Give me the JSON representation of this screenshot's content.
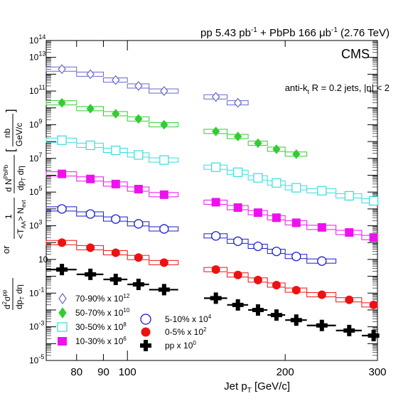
{
  "header": {
    "title_main": "pp 5.43 pb",
    "title_sup1": "-1",
    "title_mid": " + PbPb 166 μb",
    "title_sup2": "-1",
    "title_end": " (2.76 TeV)",
    "experiment": "CMS",
    "jet_selection": "anti-k",
    "jet_selection_sub": "t",
    "jet_selection_rest": " R = 0.2 jets, |η| < 2"
  },
  "axes": {
    "xlabel": "Jet p",
    "xlabel_sub": "T",
    "xlabel_unit": " [GeV/c]",
    "x_ticks": [
      "80",
      "90",
      "100",
      "200",
      "300"
    ],
    "y_ticks": [
      {
        "base": "10",
        "exp": "-5"
      },
      {
        "base": "10",
        "exp": "-3"
      },
      {
        "base": "10",
        "exp": "-1"
      },
      {
        "base": "10",
        "exp": ""
      },
      {
        "base": "10",
        "exp": "3"
      },
      {
        "base": "10",
        "exp": "5"
      },
      {
        "base": "10",
        "exp": "7"
      },
      {
        "base": "10",
        "exp": "9"
      },
      {
        "base": "10",
        "exp": "11"
      },
      {
        "base": "10",
        "exp": "13"
      },
      {
        "base": "10",
        "exp": "14"
      }
    ],
    "ylabel_or": "or",
    "ylabel_unit": "nb",
    "ylabel_unit2": "GeV/c"
  },
  "legend": [
    {
      "label": "70-90% x 10",
      "exp": "12"
    },
    {
      "label": "50-70% x 10",
      "exp": "10"
    },
    {
      "label": "30-50% x 10",
      "exp": "8"
    },
    {
      "label": "10-30% x 10",
      "exp": "6"
    },
    {
      "label": "5-10% x 10",
      "exp": "4"
    },
    {
      "label": "0-5% x 10",
      "exp": "2"
    },
    {
      "label": "pp x 10",
      "exp": "0"
    }
  ],
  "colors": {
    "s70_90": "#6666cc",
    "s50_70": "#33cc33",
    "s30_50": "#33dddd",
    "s10_30": "#ee11ee",
    "s5_10": "#1a1acc",
    "s0_5": "#ee1111",
    "pp": "#000000"
  },
  "chart_data": {
    "type": "scatter",
    "xscale": "log",
    "yscale": "log",
    "xlim": [
      70,
      300
    ],
    "ylim": [
      1e-05,
      100000000000000.0
    ],
    "x_bin_edges": [
      70,
      80,
      90,
      100,
      110,
      125,
      140,
      155,
      170,
      185,
      200,
      220,
      250,
      280,
      310
    ],
    "x": [
      75,
      85,
      95,
      105,
      117.5,
      132.5,
      147.5,
      162.5,
      177.5,
      192.5,
      210,
      235,
      265,
      295
    ],
    "series": [
      {
        "name": "70-90% x 10^12",
        "marker": "open-diamond",
        "values": [
          2000000000000.0,
          1000000000000.0,
          450000000000.0,
          200000000000.0,
          100000000000.0,
          null,
          45000000000.0,
          20000000000.0
        ]
      },
      {
        "name": "50-70% x 10^10",
        "marker": "filled-diamond",
        "values": [
          20000000000.0,
          9000000000.0,
          4500000000.0,
          2200000000.0,
          1000000000.0,
          null,
          400000000.0,
          200000000.0,
          80000000.0,
          35000000.0,
          18000000.0
        ]
      },
      {
        "name": "30-50% x 10^8",
        "marker": "open-square",
        "values": [
          120000000.0,
          60000000.0,
          30000000.0,
          16000000.0,
          8000000.0,
          null,
          3000000.0,
          1500000.0,
          700000.0,
          350000.0,
          180000.0,
          120000.0,
          60000.0,
          30000.0
        ]
      },
      {
        "name": "10-30% x 10^6",
        "marker": "filled-square",
        "values": [
          1200000.0,
          600000.0,
          300000.0,
          150000.0,
          70000.0,
          null,
          25000.0,
          12000.0,
          6000.0,
          3000.0,
          1500.0,
          800.0,
          400.0,
          200.0
        ]
      },
      {
        "name": "5-10% x 10^4",
        "marker": "open-circle",
        "values": [
          10000.0,
          5000.0,
          2500.0,
          1300.0,
          650.0,
          null,
          250.0,
          120.0,
          60.0,
          30.0,
          15.0,
          8.0,
          null,
          null
        ]
      },
      {
        "name": "0-5% x 10^2",
        "marker": "filled-circle",
        "values": [
          100.0,
          50.0,
          25.0,
          13.0,
          6.5,
          null,
          2.5,
          1.2,
          0.6,
          0.3,
          0.15,
          0.08,
          0.04,
          0.02
        ]
      },
      {
        "name": "pp x 10^0",
        "marker": "cross",
        "values": [
          2.5,
          1.3,
          0.65,
          0.33,
          0.16,
          null,
          0.05,
          0.02,
          0.01,
          0.005,
          0.0025,
          0.0012,
          0.0006,
          0.0003
        ]
      }
    ]
  }
}
